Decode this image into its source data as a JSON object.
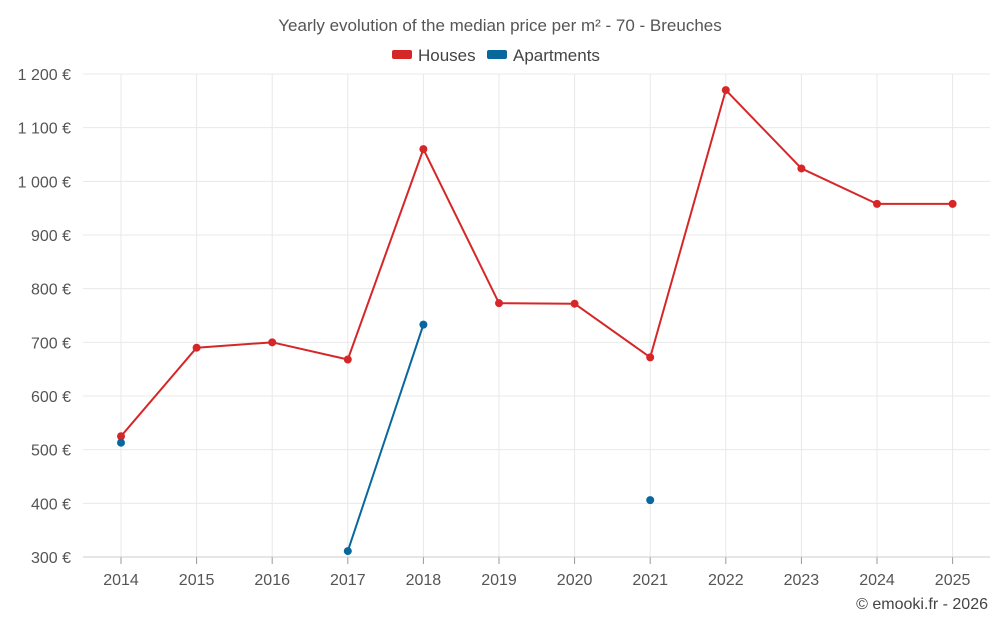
{
  "chart_data": {
    "type": "line",
    "title": "Yearly evolution of the median price per m² - 70 - Breuches",
    "xlabel": "",
    "ylabel": "",
    "categories": [
      "2014",
      "2015",
      "2016",
      "2017",
      "2018",
      "2019",
      "2020",
      "2021",
      "2022",
      "2023",
      "2024",
      "2025"
    ],
    "ylim": [
      300,
      1200
    ],
    "yticks": [
      300,
      400,
      500,
      600,
      700,
      800,
      900,
      1000,
      1100,
      1200
    ],
    "ytick_labels": [
      "300 €",
      "400 €",
      "500 €",
      "600 €",
      "700 €",
      "800 €",
      "900 €",
      "1 000 €",
      "1 100 €",
      "1 200 €"
    ],
    "grid": true,
    "legend_position": "top-center",
    "series": [
      {
        "name": "Houses",
        "color": "#d62728",
        "values": [
          525,
          690,
          700,
          668,
          1060,
          773,
          772,
          672,
          1170,
          1024,
          958,
          958
        ]
      },
      {
        "name": "Apartments",
        "color": "#08679c",
        "values": [
          513,
          null,
          null,
          311,
          733,
          null,
          null,
          406,
          null,
          null,
          null,
          null
        ]
      }
    ]
  },
  "credit": "© emooki.fr - 2026"
}
